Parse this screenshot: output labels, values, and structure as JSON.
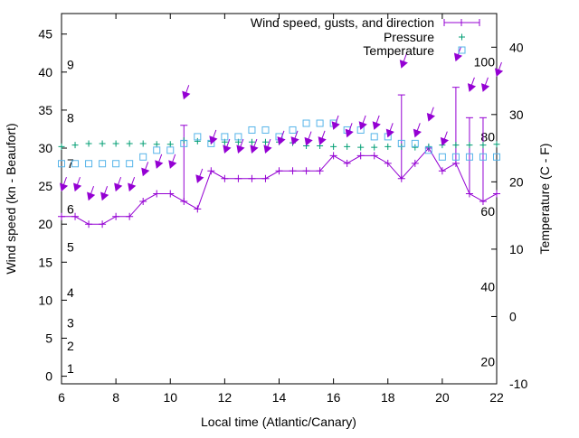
{
  "chart_data": {
    "type": "line",
    "xlabel": "Local time (Atlantic/Canary)",
    "ylabel": "Wind speed (kn - Beaufort)",
    "y2label": "Temperature (C - F)",
    "xlim": [
      6,
      22
    ],
    "ylim": [
      -1,
      47.7
    ],
    "y2lim": [
      -10,
      45
    ],
    "xticks": [
      6,
      8,
      10,
      12,
      14,
      16,
      18,
      20,
      22
    ],
    "yticks": [
      0,
      5,
      10,
      15,
      20,
      25,
      30,
      35,
      40,
      45
    ],
    "y2ticks": [
      -10,
      0,
      10,
      20,
      30,
      40
    ],
    "beaufort_labels": [
      {
        "label": "1",
        "kn": 1
      },
      {
        "label": "2",
        "kn": 4
      },
      {
        "label": "3",
        "kn": 7
      },
      {
        "label": "4",
        "kn": 11
      },
      {
        "label": "5",
        "kn": 17
      },
      {
        "label": "6",
        "kn": 22
      },
      {
        "label": "7",
        "kn": 28
      },
      {
        "label": "8",
        "kn": 34
      },
      {
        "label": "9",
        "kn": 41
      }
    ],
    "fahrenheit_labels": [
      {
        "label": "20",
        "c": -6.7
      },
      {
        "label": "40",
        "c": 4.4
      },
      {
        "label": "60",
        "c": 15.6
      },
      {
        "label": "80",
        "c": 26.7
      },
      {
        "label": "100",
        "c": 37.8
      }
    ],
    "legend": {
      "position": "top-right",
      "entries": [
        "Wind speed, gusts, and direction",
        "Pressure",
        "Temperature"
      ]
    },
    "colors": {
      "wind": "#9400d3",
      "pressure": "#009e73",
      "temperature": "#56b4e9"
    },
    "x": [
      6,
      6.5,
      7,
      7.5,
      8,
      8.5,
      9,
      9.5,
      10,
      10.5,
      11,
      11.5,
      12,
      12.5,
      13,
      13.5,
      14,
      14.5,
      15,
      15.5,
      16,
      16.5,
      17,
      17.5,
      18,
      18.5,
      19,
      19.5,
      20,
      20.5,
      21,
      21.5,
      22
    ],
    "series": [
      {
        "name": "Wind speed",
        "axis": "y",
        "values": [
          21,
          21,
          20,
          20,
          21,
          21,
          23,
          24,
          24,
          23,
          22,
          27,
          26,
          26,
          26,
          26,
          27,
          27,
          27,
          27,
          29,
          28,
          29,
          29,
          28,
          26,
          28,
          30,
          27,
          28,
          24,
          23,
          24
        ]
      },
      {
        "name": "Gusts",
        "axis": "y",
        "values": [
          null,
          null,
          null,
          null,
          null,
          null,
          null,
          null,
          null,
          33,
          null,
          null,
          null,
          null,
          null,
          null,
          null,
          null,
          null,
          null,
          null,
          null,
          null,
          null,
          null,
          37,
          null,
          null,
          null,
          38,
          34,
          34,
          null
        ]
      },
      {
        "name": "Direction arrows (kn position)",
        "axis": "y",
        "direction_deg": 20,
        "values": [
          24.4,
          24.4,
          23.2,
          23.2,
          24.4,
          24.4,
          26.4,
          27.4,
          27.4,
          36.5,
          25.5,
          30.6,
          29.4,
          29.4,
          29.4,
          29.4,
          30.5,
          30.5,
          30.4,
          30.5,
          32.5,
          31.5,
          32.5,
          32.5,
          31.5,
          40.6,
          31.5,
          33.6,
          30.4,
          41.5,
          37.5,
          37.5,
          39.5
        ]
      },
      {
        "name": "Pressure",
        "axis": "y",
        "values": [
          30.2,
          30.4,
          30.6,
          30.6,
          30.6,
          30.6,
          30.6,
          30.5,
          30.5,
          31,
          30.9,
          30.9,
          30.8,
          30.8,
          30.8,
          30.8,
          30.8,
          30.7,
          30.3,
          30.3,
          30.2,
          30.2,
          30.1,
          30.1,
          30.2,
          30.2,
          30.1,
          30.2,
          30.4,
          30.4,
          30.4,
          30.4,
          30.5
        ]
      },
      {
        "name": "Temperature",
        "axis": "y2",
        "values": [
          22.7,
          22.7,
          22.7,
          22.7,
          22.7,
          22.7,
          23.7,
          24.7,
          24.7,
          25.7,
          26.7,
          25.7,
          26.7,
          26.7,
          27.7,
          27.7,
          26.7,
          27.7,
          28.7,
          28.7,
          28.7,
          27.7,
          27.7,
          26.7,
          26.7,
          25.7,
          25.7,
          24.7,
          23.7,
          23.7,
          23.7,
          23.7,
          23.7
        ]
      }
    ]
  }
}
